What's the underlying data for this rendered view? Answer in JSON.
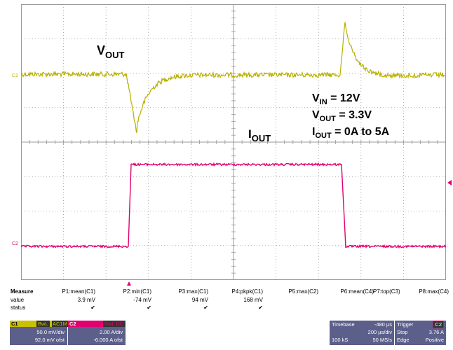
{
  "plot": {
    "grid_color": "#9a9a9a",
    "trace1_color": "#b8b000",
    "trace2_color": "#e0006f",
    "channel_markers": {
      "c1": "C1",
      "c2": "C2"
    },
    "labels": {
      "vout": {
        "main": "V",
        "sub": "OUT"
      },
      "iout": {
        "main": "I",
        "sub": "OUT"
      }
    },
    "conditions": [
      {
        "main": "V",
        "sub": "IN",
        "rest": " = 12V"
      },
      {
        "main": "V",
        "sub": "OUT",
        "rest": " = 3.3V"
      },
      {
        "main": "I",
        "sub": "OUT",
        "rest": " = 0A to 5A"
      }
    ]
  },
  "measure": {
    "header": "Measure",
    "columns": [
      "P1:mean(C1)",
      "P2:min(C1)",
      "P3:max(C1)",
      "P4:pkpk(C1)",
      "P5:max(C2)",
      "P6:mean(C4)",
      "P7:top(C3)",
      "P8:max(C4)"
    ],
    "value_label": "value",
    "values": [
      "3.9 mV",
      "-74 mV",
      "94 mV",
      "168 mV",
      "",
      "",
      "",
      ""
    ],
    "status_label": "status",
    "status": [
      "✔",
      "✔",
      "✔",
      "✔",
      "",
      "",
      "",
      ""
    ]
  },
  "channels": {
    "c1": {
      "name": "C1",
      "tag1": "BwL",
      "tag2": "AC1M",
      "scale": "50.0 mV/div",
      "offset": "92.0 mV ofst",
      "color": "#c8c000"
    },
    "c2": {
      "name": "C2",
      "tag": "BwL DC",
      "scale": "2.00 A/div",
      "offset": "-6.000 A ofst",
      "color": "#e0006f"
    }
  },
  "timebase": {
    "label": "Timebase",
    "delay": "-480 µs",
    "div": "200 µs/div",
    "samples": "100 kS",
    "rate": "50 MS/s"
  },
  "trigger": {
    "label": "Trigger",
    "badge": "C2",
    "mode": "Stop",
    "level": "3.76 A",
    "type": "Edge",
    "slope": "Positive"
  }
}
